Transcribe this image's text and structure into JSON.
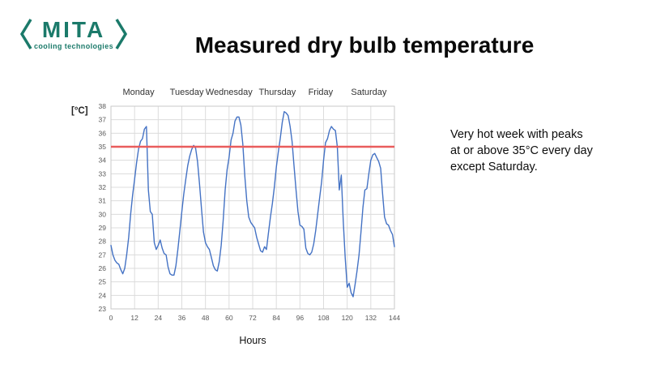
{
  "slide": {
    "logo": {
      "brand": "MITA",
      "tagline": "cooling technologies",
      "brand_color": "#1b7a6a"
    },
    "title": "Measured dry bulb temperature",
    "note_lines": [
      "Very hot week with peaks",
      "at or above 35°C every day",
      "except Saturday."
    ]
  },
  "chart_data": {
    "type": "line",
    "title": "Measured dry bulb temperature",
    "y_axis_label": "[°C]",
    "x_axis_label": "Hours",
    "ylim": [
      23,
      38
    ],
    "xlim": [
      0,
      144
    ],
    "grid": true,
    "y_ticks": [
      23,
      24,
      25,
      26,
      27,
      28,
      29,
      30,
      31,
      32,
      33,
      34,
      35,
      36,
      37,
      38
    ],
    "x_ticks": [
      0,
      12,
      24,
      36,
      48,
      60,
      72,
      84,
      96,
      108,
      120,
      132,
      144
    ],
    "day_labels": [
      {
        "label": "Monday",
        "hour": 14
      },
      {
        "label": "Tuesday",
        "hour": 38.5
      },
      {
        "label": "Wednesday",
        "hour": 60
      },
      {
        "label": "Thursday",
        "hour": 84.5
      },
      {
        "label": "Friday",
        "hour": 106.5
      },
      {
        "label": "Saturday",
        "hour": 131
      }
    ],
    "reference_line": {
      "value": 35,
      "color": "#e95c5c"
    },
    "colors": {
      "grid": "#dcdcdc",
      "border": "#c9c9c9",
      "tick_text": "#595959"
    },
    "series": [
      {
        "name": "Dry bulb temperature",
        "color": "#4472c4",
        "x_start": 0,
        "x_step": 1,
        "values": [
          27.7,
          27.0,
          26.6,
          26.4,
          26.3,
          25.9,
          25.6,
          26.0,
          27.0,
          28.3,
          30.0,
          31.4,
          32.6,
          33.8,
          34.8,
          35.4,
          35.6,
          36.3,
          36.5,
          31.8,
          30.2,
          30.0,
          27.9,
          27.4,
          27.7,
          28.1,
          27.5,
          27.1,
          27.0,
          26.1,
          25.6,
          25.5,
          25.5,
          26.2,
          27.4,
          28.8,
          30.2,
          31.5,
          32.6,
          33.6,
          34.3,
          34.8,
          35.1,
          34.9,
          33.9,
          32.2,
          30.4,
          28.7,
          27.9,
          27.6,
          27.4,
          26.8,
          26.2,
          25.9,
          25.8,
          26.5,
          27.7,
          29.5,
          31.8,
          33.3,
          34.2,
          35.5,
          36.0,
          36.9,
          37.2,
          37.2,
          36.6,
          35.2,
          32.8,
          31.0,
          29.8,
          29.4,
          29.2,
          29.0,
          28.3,
          27.8,
          27.3,
          27.2,
          27.6,
          27.4,
          28.6,
          29.8,
          30.8,
          32.0,
          33.5,
          34.6,
          35.6,
          36.8,
          37.6,
          37.5,
          37.3,
          36.5,
          35.4,
          33.6,
          31.8,
          30.2,
          29.2,
          29.1,
          28.9,
          27.5,
          27.1,
          27.0,
          27.2,
          27.8,
          28.8,
          30.0,
          31.2,
          32.4,
          34.0,
          35.3,
          35.6,
          36.2,
          36.5,
          36.3,
          36.2,
          35.0,
          31.8,
          32.9,
          29.5,
          26.8,
          24.6,
          24.9,
          24.2,
          23.9,
          24.8,
          25.8,
          27.0,
          28.7,
          30.5,
          31.8,
          31.9,
          33.0,
          34.0,
          34.4,
          34.5,
          34.2,
          33.9,
          33.4,
          31.5,
          29.8,
          29.3,
          29.2,
          28.8,
          28.5,
          27.6
        ]
      }
    ]
  }
}
